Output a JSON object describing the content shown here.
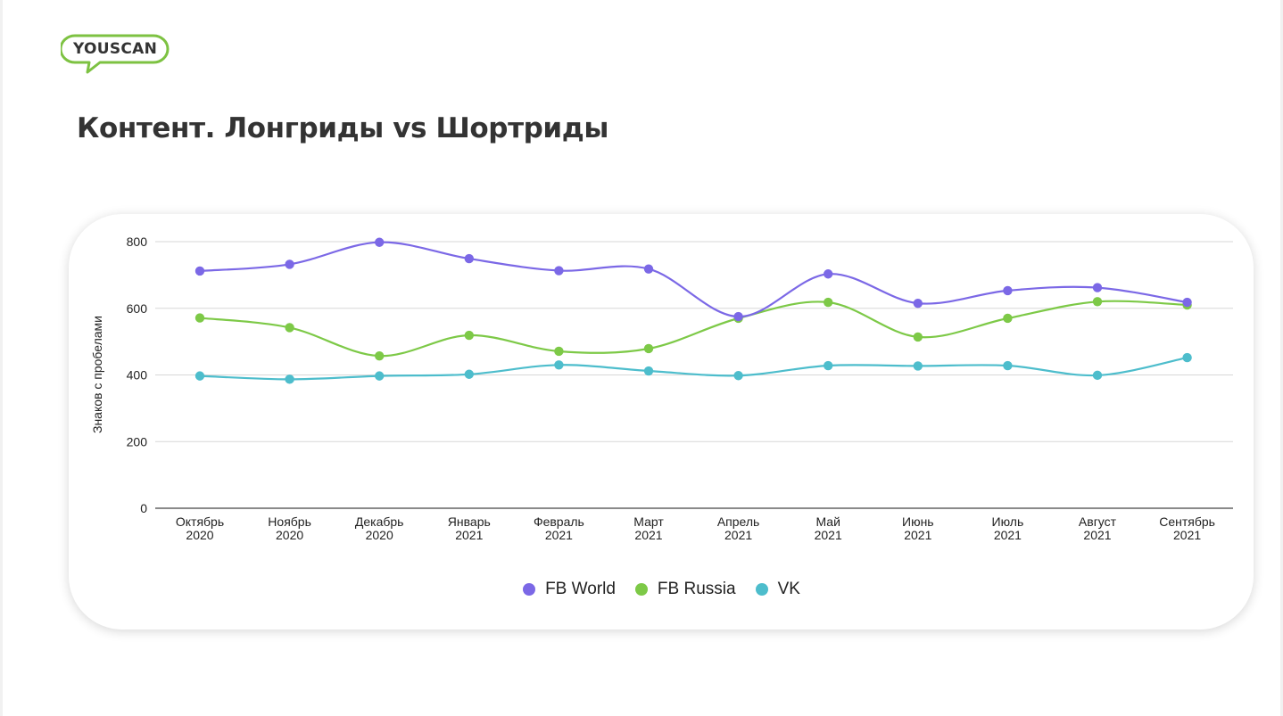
{
  "brand": {
    "logo_text": "YOUSCAN",
    "logo_color": "#7dc242"
  },
  "slide": {
    "title": "Контент. Лонгриды vs Шортриды"
  },
  "chart_data": {
    "type": "line",
    "curve": "smooth",
    "title": "",
    "xlabel": "",
    "ylabel": "Знаков с пробелами",
    "ylim": [
      0,
      800
    ],
    "yticks": [
      0,
      200,
      400,
      600,
      800
    ],
    "grid": true,
    "legend_position": "bottom",
    "categories": [
      [
        "Октябрь",
        "2020"
      ],
      [
        "Ноябрь",
        "2020"
      ],
      [
        "Декабрь",
        "2020"
      ],
      [
        "Январь",
        "2021"
      ],
      [
        "Февраль",
        "2021"
      ],
      [
        "Март",
        "2021"
      ],
      [
        "Апрель",
        "2021"
      ],
      [
        "Май",
        "2021"
      ],
      [
        "Июнь",
        "2021"
      ],
      [
        "Июль",
        "2021"
      ],
      [
        "Август",
        "2021"
      ],
      [
        "Сентябрь",
        "2021"
      ]
    ],
    "series": [
      {
        "name": "FB World",
        "color": "#7b68e6",
        "values": [
          712,
          732,
          798,
          749,
          713,
          718,
          575,
          703,
          615,
          653,
          662,
          618
        ]
      },
      {
        "name": "FB Russia",
        "color": "#7dc947",
        "values": [
          571,
          542,
          457,
          519,
          471,
          479,
          570,
          618,
          514,
          570,
          620,
          610
        ]
      },
      {
        "name": "VK",
        "color": "#4dbdcc",
        "values": [
          397,
          387,
          397,
          402,
          430,
          412,
          398,
          428,
          427,
          428,
          399,
          452
        ]
      }
    ]
  }
}
